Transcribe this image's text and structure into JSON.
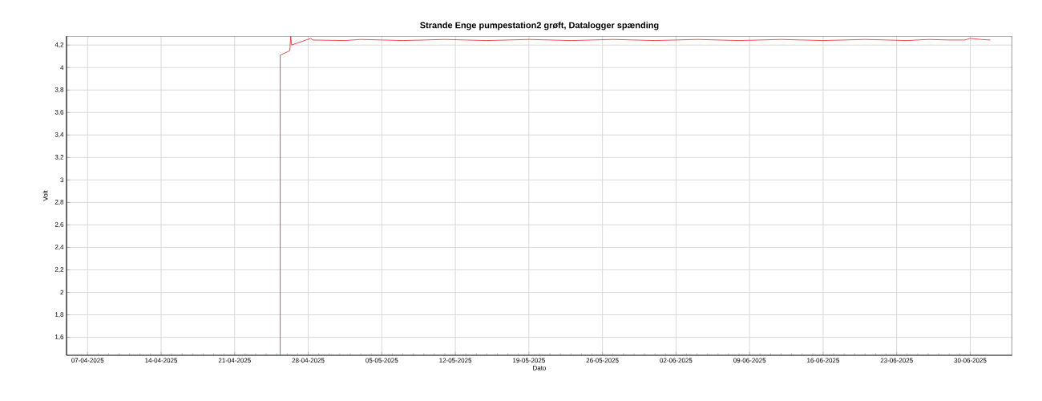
{
  "chart_data": {
    "type": "line",
    "title": "Strande Enge pumpestation2 grøft, Datalogger spænding",
    "xlabel": "Dato",
    "ylabel": "Volt",
    "x": [
      "2025-04-25T08:00",
      "2025-04-25T08:00",
      "2025-04-26T06:00",
      "2025-04-26T08:00",
      "2025-04-26T10:00",
      "2025-04-28T06:00",
      "2025-04-28T10:00",
      "2025-05-01T12:00",
      "2025-05-03T00:00",
      "2025-05-05T00:00",
      "2025-05-07T00:00",
      "2025-05-09T00:00",
      "2025-05-11T00:00",
      "2025-05-13T00:00",
      "2025-05-15T00:00",
      "2025-05-17T00:00",
      "2025-05-19T00:00",
      "2025-05-21T00:00",
      "2025-05-23T00:00",
      "2025-05-25T00:00",
      "2025-05-27T00:00",
      "2025-05-29T00:00",
      "2025-05-31T00:00",
      "2025-06-02T00:00",
      "2025-06-04T00:00",
      "2025-06-06T00:00",
      "2025-06-08T00:00",
      "2025-06-10T00:00",
      "2025-06-12T00:00",
      "2025-06-14T00:00",
      "2025-06-16T00:00",
      "2025-06-18T00:00",
      "2025-06-20T00:00",
      "2025-06-22T00:00",
      "2025-06-24T00:00",
      "2025-06-26T00:00",
      "2025-06-28T00:00",
      "2025-06-29T12:00",
      "2025-06-30T00:00",
      "2025-07-01T00:00",
      "2025-07-01T22:00"
    ],
    "series": [
      {
        "color": "#e8202a",
        "values": [
          1.44,
          4.11,
          4.15,
          4.28,
          4.2,
          4.26,
          4.245,
          4.24,
          4.25,
          4.245,
          4.24,
          4.245,
          4.25,
          4.245,
          4.24,
          4.245,
          4.25,
          4.245,
          4.24,
          4.245,
          4.25,
          4.245,
          4.24,
          4.245,
          4.25,
          4.245,
          4.24,
          4.245,
          4.25,
          4.245,
          4.24,
          4.245,
          4.25,
          4.245,
          4.24,
          4.25,
          4.245,
          4.245,
          4.26,
          4.25,
          4.245
        ]
      }
    ],
    "xlim": [
      "2025-04-05",
      "2025-07-04T00:00"
    ],
    "xticks": [
      {
        "value": "2025-04-07",
        "label": "07-04-2025"
      },
      {
        "value": "2025-04-14",
        "label": "14-04-2025"
      },
      {
        "value": "2025-04-21",
        "label": "21-04-2025"
      },
      {
        "value": "2025-04-28",
        "label": "28-04-2025"
      },
      {
        "value": "2025-05-05",
        "label": "05-05-2025"
      },
      {
        "value": "2025-05-12",
        "label": "12-05-2025"
      },
      {
        "value": "2025-05-19",
        "label": "19-05-2025"
      },
      {
        "value": "2025-05-26",
        "label": "26-05-2025"
      },
      {
        "value": "2025-06-02",
        "label": "02-06-2025"
      },
      {
        "value": "2025-06-09",
        "label": "09-06-2025"
      },
      {
        "value": "2025-06-16",
        "label": "16-06-2025"
      },
      {
        "value": "2025-06-23",
        "label": "23-06-2025"
      },
      {
        "value": "2025-06-30",
        "label": "30-06-2025"
      }
    ],
    "ylim": [
      1.44,
      4.28
    ],
    "yticks": [
      {
        "value": 1.6,
        "label": "1,6"
      },
      {
        "value": 1.8,
        "label": "1,8"
      },
      {
        "value": 2.0,
        "label": "2"
      },
      {
        "value": 2.2,
        "label": "2,2"
      },
      {
        "value": 2.4,
        "label": "2,4"
      },
      {
        "value": 2.6,
        "label": "2,6"
      },
      {
        "value": 2.8,
        "label": "2,8"
      },
      {
        "value": 3.0,
        "label": "3"
      },
      {
        "value": 3.2,
        "label": "3,2"
      },
      {
        "value": 3.4,
        "label": "3,4"
      },
      {
        "value": 3.6,
        "label": "3,6"
      },
      {
        "value": 3.8,
        "label": "3,8"
      },
      {
        "value": 4.0,
        "label": "4"
      },
      {
        "value": 4.2,
        "label": "4,2"
      }
    ],
    "grid": true,
    "marker": "none",
    "line_style": "solid"
  }
}
